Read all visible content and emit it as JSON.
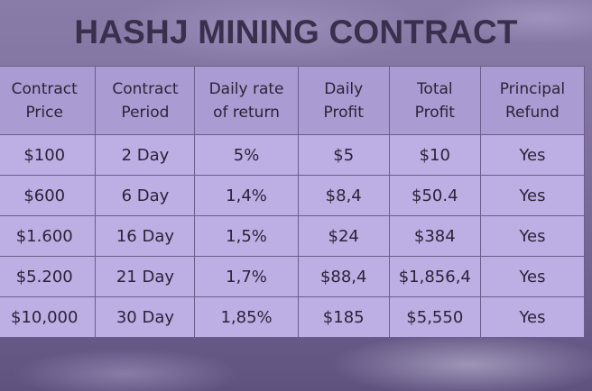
{
  "title": "HASHJ MINING CONTRACT",
  "columns": [
    {
      "line1": "Contract",
      "line2": "Price"
    },
    {
      "line1": "Contract",
      "line2": "Period"
    },
    {
      "line1": "Daily rate",
      "line2": "of return"
    },
    {
      "line1": "Daily",
      "line2": "Profit"
    },
    {
      "line1": "Total",
      "line2": "Profit"
    },
    {
      "line1": "Principal",
      "line2": "Refund"
    }
  ],
  "rows": [
    [
      "$100",
      "2 Day",
      "5%",
      "$5",
      "$10",
      "Yes"
    ],
    [
      "$600",
      "6 Day",
      "1,4%",
      "$8,4",
      "$50.4",
      "Yes"
    ],
    [
      "$1.600",
      "16 Day",
      "1,5%",
      "$24",
      "$384",
      "Yes"
    ],
    [
      "$5.200",
      "21 Day",
      "1,7%",
      "$88,4",
      "$1,856,4",
      "Yes"
    ],
    [
      "$10,000",
      "30 Day",
      "1,85%",
      "$185",
      "$5,550",
      "Yes"
    ]
  ]
}
